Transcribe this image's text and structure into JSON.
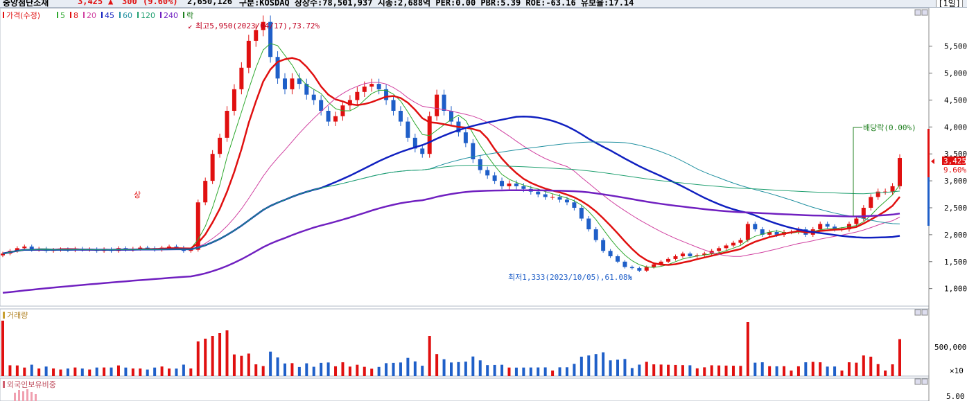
{
  "header": {
    "name": "중앙첨단소재",
    "price": "3,425",
    "change_symbol": "▲",
    "change": "300",
    "change_pct": "(9.60%)",
    "volume": "2,650,126",
    "info": "구분:KOSDAQ 상장수:78,501,937 시총:2,688억 PER:0.00 PBR:5.39 ROE:-63.16 유보율:17.14",
    "period": "[1일]"
  },
  "colors": {
    "up": "#e01010",
    "down": "#1f5fc8",
    "ma5": "#2ea82e",
    "ma8": "#e01010",
    "ma20": "#d040a0",
    "ma45": "#1020c0",
    "ma60": "#2090a0",
    "ma120": "#20a070",
    "ma240": "#7020c0",
    "event": "#208020"
  },
  "price_legend": [
    {
      "label": "가격(수정)",
      "color": "#e01010"
    },
    {
      "label": "5",
      "color": "#2ea82e"
    },
    {
      "label": "8",
      "color": "#e01010"
    },
    {
      "label": "20",
      "color": "#d040a0"
    },
    {
      "label": "45",
      "color": "#1020c0"
    },
    {
      "label": "60",
      "color": "#2090a0"
    },
    {
      "label": "120",
      "color": "#20a070"
    },
    {
      "label": "240",
      "color": "#7020c0"
    },
    {
      "label": "락",
      "color": "#208020"
    }
  ],
  "annotations": {
    "high": "최고5,950(2023/04/17),73.72%",
    "low": "최저1,333(2023/10/05),61.08%",
    "dividend": "배당락(0.00%)",
    "upper_limit": "상"
  },
  "price_axis": {
    "ticks": [
      "5,500",
      "5,000",
      "4,500",
      "4,000",
      "3,500",
      "3,000",
      "2,500",
      "2,000",
      "1,500",
      "1,000"
    ],
    "current": "3,425",
    "current_pct": "9.60%"
  },
  "volume_pane": {
    "label": "거래량",
    "ticks": [
      "500,000"
    ],
    "unit": "×10"
  },
  "foreign_pane": {
    "label": "외국인보유비중",
    "ticks": [
      "5.00"
    ]
  },
  "chart_data": {
    "type": "candlestick",
    "title": "중앙첨단소재",
    "ylim": [
      700,
      6100
    ],
    "approx_close": [
      1650,
      1700,
      1750,
      1780,
      1720,
      1740,
      1700,
      1720,
      1730,
      1710,
      1740,
      1720,
      1730,
      1700,
      1730,
      1700,
      1750,
      1720,
      1740,
      1760,
      1750,
      1720,
      1760,
      1780,
      1760,
      1700,
      1720,
      2600,
      3000,
      3500,
      3800,
      4300,
      4700,
      5100,
      5600,
      5800,
      5950,
      5300,
      4900,
      4700,
      4900,
      4800,
      4600,
      4500,
      4300,
      4100,
      4200,
      4400,
      4500,
      4650,
      4750,
      4800,
      4700,
      4500,
      4300,
      4100,
      3800,
      3600,
      3500,
      4200,
      4600,
      4300,
      4100,
      3900,
      3700,
      3400,
      3200,
      3100,
      3000,
      2900,
      2950,
      2900,
      2850,
      2800,
      2750,
      2700,
      2700,
      2650,
      2600,
      2500,
      2300,
      2100,
      1900,
      1700,
      1600,
      1500,
      1400,
      1380,
      1333,
      1400,
      1450,
      1500,
      1550,
      1600,
      1650,
      1600,
      1620,
      1650,
      1700,
      1750,
      1800,
      1850,
      1900,
      2200,
      2100,
      2000,
      2050,
      2000,
      2050,
      2050,
      2100,
      2000,
      2100,
      2200,
      2150,
      2100,
      2100,
      2200,
      2300,
      2500,
      2700,
      2800,
      2800,
      2900,
      3425
    ],
    "dividend_marker": "배당락(0.00%)",
    "moving_averages": [
      "5",
      "8",
      "20",
      "45",
      "60",
      "120",
      "240"
    ]
  }
}
